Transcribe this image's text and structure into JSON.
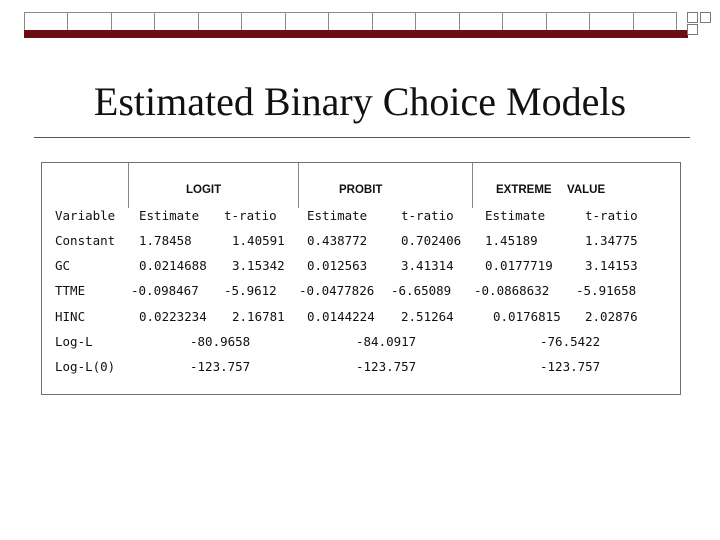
{
  "slide": {
    "title": "Estimated Binary Choice Models"
  },
  "table": {
    "model_headers": [
      "LOGIT",
      "PROBIT",
      "EXTREME",
      "VALUE"
    ],
    "column_headers": [
      "Variable",
      "Estimate",
      "t-ratio",
      "Estimate",
      "t-ratio",
      "Estimate",
      "t-ratio"
    ],
    "rows": [
      {
        "variable": "Constant",
        "logit_est": "1.78458",
        "logit_t": "1.40591",
        "probit_est": "0.438772",
        "probit_t": "0.702406",
        "ev_est": "1.45189",
        "ev_t": "1.34775"
      },
      {
        "variable": "GC",
        "logit_est": "0.0214688",
        "logit_t": "3.15342",
        "probit_est": "0.012563",
        "probit_t": "3.41314",
        "ev_est": "0.0177719",
        "ev_t": "3.14153"
      },
      {
        "variable": "TTME",
        "logit_est": "-0.098467",
        "logit_t": "-5.9612",
        "probit_est": "-0.0477826",
        "probit_t": "-6.65089",
        "ev_est": "-0.0868632",
        "ev_t": "-5.91658"
      },
      {
        "variable": "HINC",
        "logit_est": "0.0223234",
        "logit_t": "2.16781",
        "probit_est": "0.0144224",
        "probit_t": "2.51264",
        "ev_est": "0.0176815",
        "ev_t": "2.02876"
      }
    ],
    "summary": [
      {
        "label": "Log-L",
        "logit": "-80.9658",
        "probit": "-84.0917",
        "ev": "-76.5422"
      },
      {
        "label": "Log-L(0)",
        "logit": "-123.757",
        "probit": "-123.757",
        "ev": "-123.757"
      }
    ]
  },
  "colors": {
    "accent_stripe": "#6b0d12",
    "grid_lines": "#8a8a8a"
  }
}
